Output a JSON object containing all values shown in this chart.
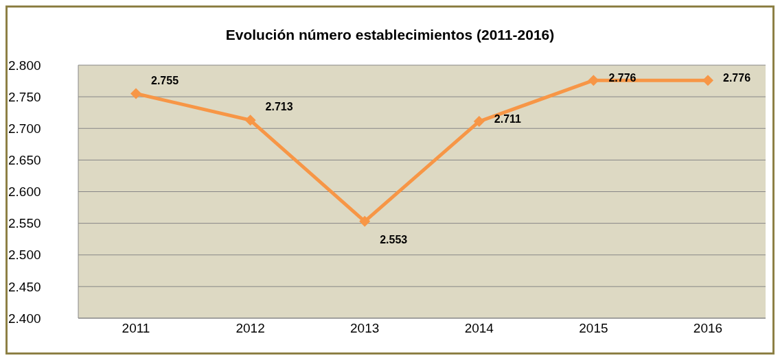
{
  "chart_data": {
    "type": "line",
    "title": "Evolución número establecimientos (2011-2016)",
    "categories": [
      "2011",
      "2012",
      "2013",
      "2014",
      "2015",
      "2016"
    ],
    "series": [
      {
        "color": "#f79646",
        "values": [
          2755,
          2713,
          2553,
          2711,
          2776,
          2776
        ],
        "value_labels": [
          "2.755",
          "2.713",
          "2.553",
          "2.711",
          "2.776",
          "2.776"
        ]
      }
    ],
    "ylim": [
      2400,
      2800
    ],
    "yticks": [
      {
        "value": 2400,
        "label": "2.400"
      },
      {
        "value": 2450,
        "label": "2.450"
      },
      {
        "value": 2500,
        "label": "2.500"
      },
      {
        "value": 2550,
        "label": "2.550"
      },
      {
        "value": 2600,
        "label": "2.600"
      },
      {
        "value": 2650,
        "label": "2.650"
      },
      {
        "value": 2700,
        "label": "2.700"
      },
      {
        "value": 2750,
        "label": "2.750"
      },
      {
        "value": 2800,
        "label": "2.800"
      }
    ],
    "grid": "y",
    "legend": false,
    "marker": "diamond",
    "line_style": "solid"
  }
}
